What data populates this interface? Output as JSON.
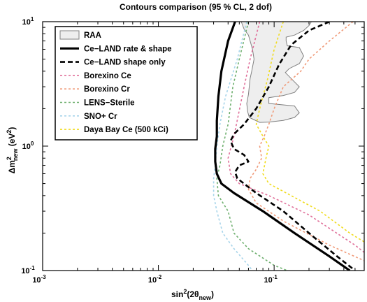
{
  "chart_data": {
    "type": "line",
    "title": "Contours comparison (95 % CL, 2 dof)",
    "xlabel": {
      "base": "sin",
      "sup": "2",
      "mid": "(2θ",
      "sub": "new",
      "end": ")"
    },
    "ylabel": {
      "pre": "Δm",
      "sup": "2",
      "sub": "new",
      "mid": " (eV",
      "sup2": "2",
      "end": ")"
    },
    "xscale": "log",
    "yscale": "log",
    "xlim": [
      0.001,
      0.6
    ],
    "ylim": [
      0.1,
      10
    ],
    "x_ticks": [
      {
        "value": 0.001,
        "base": "10",
        "exp": "-3"
      },
      {
        "value": 0.01,
        "base": "10",
        "exp": "-2"
      },
      {
        "value": 0.1,
        "base": "10",
        "exp": "-1"
      }
    ],
    "y_ticks": [
      {
        "value": 0.1,
        "base": "10",
        "exp": "-1"
      },
      {
        "value": 1,
        "base": "10",
        "exp": "0"
      },
      {
        "value": 10,
        "base": "10",
        "exp": "1"
      }
    ],
    "legend_position": "top-left",
    "raa_region": {
      "name": "RAA",
      "fill": "#eeeeee",
      "stroke": "#808080",
      "points": [
        [
          0.052,
          10
        ],
        [
          0.055,
          8.7
        ],
        [
          0.06,
          7.8
        ],
        [
          0.065,
          6.0
        ],
        [
          0.067,
          5.0
        ],
        [
          0.064,
          4.0
        ],
        [
          0.062,
          3.5
        ],
        [
          0.06,
          2.6
        ],
        [
          0.058,
          2.2
        ],
        [
          0.059,
          1.9
        ],
        [
          0.061,
          1.7
        ],
        [
          0.075,
          1.55
        ],
        [
          0.09,
          1.56
        ],
        [
          0.12,
          1.61
        ],
        [
          0.15,
          1.7
        ],
        [
          0.165,
          1.85
        ],
        [
          0.15,
          2.1
        ],
        [
          0.09,
          2.2
        ],
        [
          0.09,
          2.45
        ],
        [
          0.12,
          2.55
        ],
        [
          0.15,
          2.7
        ],
        [
          0.165,
          3.0
        ],
        [
          0.14,
          3.5
        ],
        [
          0.125,
          3.9
        ],
        [
          0.135,
          4.2
        ],
        [
          0.165,
          4.6
        ],
        [
          0.18,
          5.3
        ],
        [
          0.165,
          6.2
        ],
        [
          0.13,
          6.4
        ],
        [
          0.127,
          7.0
        ],
        [
          0.127,
          7.5
        ],
        [
          0.15,
          7.8
        ],
        [
          0.18,
          8.5
        ],
        [
          0.2,
          9.3
        ],
        [
          0.21,
          10
        ]
      ]
    },
    "series": [
      {
        "name": "Ce−LAND rate & shape",
        "color": "#000000",
        "dash": "solid",
        "width": 3.2,
        "points": [
          [
            0.046,
            10
          ],
          [
            0.04,
            7
          ],
          [
            0.035,
            4
          ],
          [
            0.033,
            2.5
          ],
          [
            0.032,
            1.6
          ],
          [
            0.032,
            1.2
          ],
          [
            0.031,
            0.95
          ],
          [
            0.031,
            0.75
          ],
          [
            0.032,
            0.6
          ],
          [
            0.035,
            0.5
          ],
          [
            0.045,
            0.42
          ],
          [
            0.08,
            0.3
          ],
          [
            0.15,
            0.2
          ],
          [
            0.3,
            0.13
          ],
          [
            0.45,
            0.1
          ]
        ]
      },
      {
        "name": "Ce−LAND shape only",
        "color": "#000000",
        "dash": "7,4",
        "width": 2.6,
        "points": [
          [
            0.3,
            10
          ],
          [
            0.2,
            8.5
          ],
          [
            0.14,
            6.5
          ],
          [
            0.11,
            4.5
          ],
          [
            0.09,
            3.0
          ],
          [
            0.07,
            2.0
          ],
          [
            0.055,
            1.5
          ],
          [
            0.045,
            1.25
          ],
          [
            0.042,
            1.1
          ],
          [
            0.045,
            0.95
          ],
          [
            0.055,
            0.85
          ],
          [
            0.06,
            0.75
          ],
          [
            0.05,
            0.7
          ],
          [
            0.046,
            0.62
          ],
          [
            0.048,
            0.55
          ],
          [
            0.07,
            0.42
          ],
          [
            0.12,
            0.3
          ],
          [
            0.2,
            0.2
          ],
          [
            0.35,
            0.13
          ],
          [
            0.5,
            0.1
          ]
        ]
      },
      {
        "name": "Borexino Ce",
        "color": "#e0709a",
        "dash": "3,3",
        "width": 1.6,
        "points": [
          [
            0.075,
            10
          ],
          [
            0.062,
            5
          ],
          [
            0.055,
            3
          ],
          [
            0.045,
            1.2
          ],
          [
            0.04,
            0.8
          ],
          [
            0.042,
            0.6
          ],
          [
            0.05,
            0.5
          ],
          [
            0.09,
            0.4
          ],
          [
            0.2,
            0.28
          ],
          [
            0.5,
            0.16
          ],
          [
            0.6,
            0.14
          ]
        ]
      },
      {
        "name": "Borexino Cr",
        "color": "#f09a78",
        "dash": "3,3",
        "width": 1.6,
        "points": [
          [
            0.48,
            10
          ],
          [
            0.3,
            7
          ],
          [
            0.2,
            5
          ],
          [
            0.17,
            4
          ],
          [
            0.12,
            3
          ],
          [
            0.1,
            2
          ],
          [
            0.09,
            1.5
          ],
          [
            0.082,
            1.2
          ],
          [
            0.075,
            1.0
          ],
          [
            0.078,
            0.8
          ],
          [
            0.07,
            0.65
          ],
          [
            0.062,
            0.55
          ],
          [
            0.06,
            0.45
          ],
          [
            0.07,
            0.35
          ],
          [
            0.12,
            0.25
          ],
          [
            0.3,
            0.16
          ],
          [
            0.6,
            0.12
          ]
        ]
      },
      {
        "name": "LENS−Sterile",
        "color": "#6fb06f",
        "dash": "3,3",
        "width": 1.6,
        "points": [
          [
            0.06,
            10
          ],
          [
            0.05,
            5
          ],
          [
            0.044,
            3
          ],
          [
            0.04,
            1.5
          ],
          [
            0.036,
            1.0
          ],
          [
            0.034,
            0.7
          ],
          [
            0.032,
            0.55
          ],
          [
            0.033,
            0.4
          ],
          [
            0.04,
            0.3
          ],
          [
            0.045,
            0.2
          ],
          [
            0.06,
            0.15
          ],
          [
            0.1,
            0.11
          ],
          [
            0.13,
            0.1
          ]
        ]
      },
      {
        "name": "SNO+ Cr",
        "color": "#a6d4ea",
        "dash": "3,3",
        "width": 1.6,
        "points": [
          [
            0.058,
            10
          ],
          [
            0.048,
            5
          ],
          [
            0.038,
            2.5
          ],
          [
            0.034,
            1.5
          ],
          [
            0.032,
            1.0
          ],
          [
            0.031,
            0.7
          ],
          [
            0.03,
            0.55
          ],
          [
            0.03,
            0.4
          ],
          [
            0.032,
            0.3
          ],
          [
            0.036,
            0.2
          ],
          [
            0.045,
            0.15
          ],
          [
            0.06,
            0.11
          ],
          [
            0.065,
            0.1
          ]
        ]
      },
      {
        "name": "Daya Bay Ce (500 kCi)",
        "color": "#f0dc1e",
        "dash": "3,3",
        "width": 1.6,
        "points": [
          [
            0.12,
            10
          ],
          [
            0.1,
            6
          ],
          [
            0.088,
            3.5
          ],
          [
            0.075,
            2.0
          ],
          [
            0.07,
            1.5
          ],
          [
            0.08,
            1.2
          ],
          [
            0.09,
            1.0
          ],
          [
            0.085,
            0.8
          ],
          [
            0.08,
            0.6
          ],
          [
            0.09,
            0.5
          ],
          [
            0.14,
            0.4
          ],
          [
            0.25,
            0.3
          ],
          [
            0.45,
            0.2
          ],
          [
            0.6,
            0.17
          ]
        ]
      }
    ]
  }
}
